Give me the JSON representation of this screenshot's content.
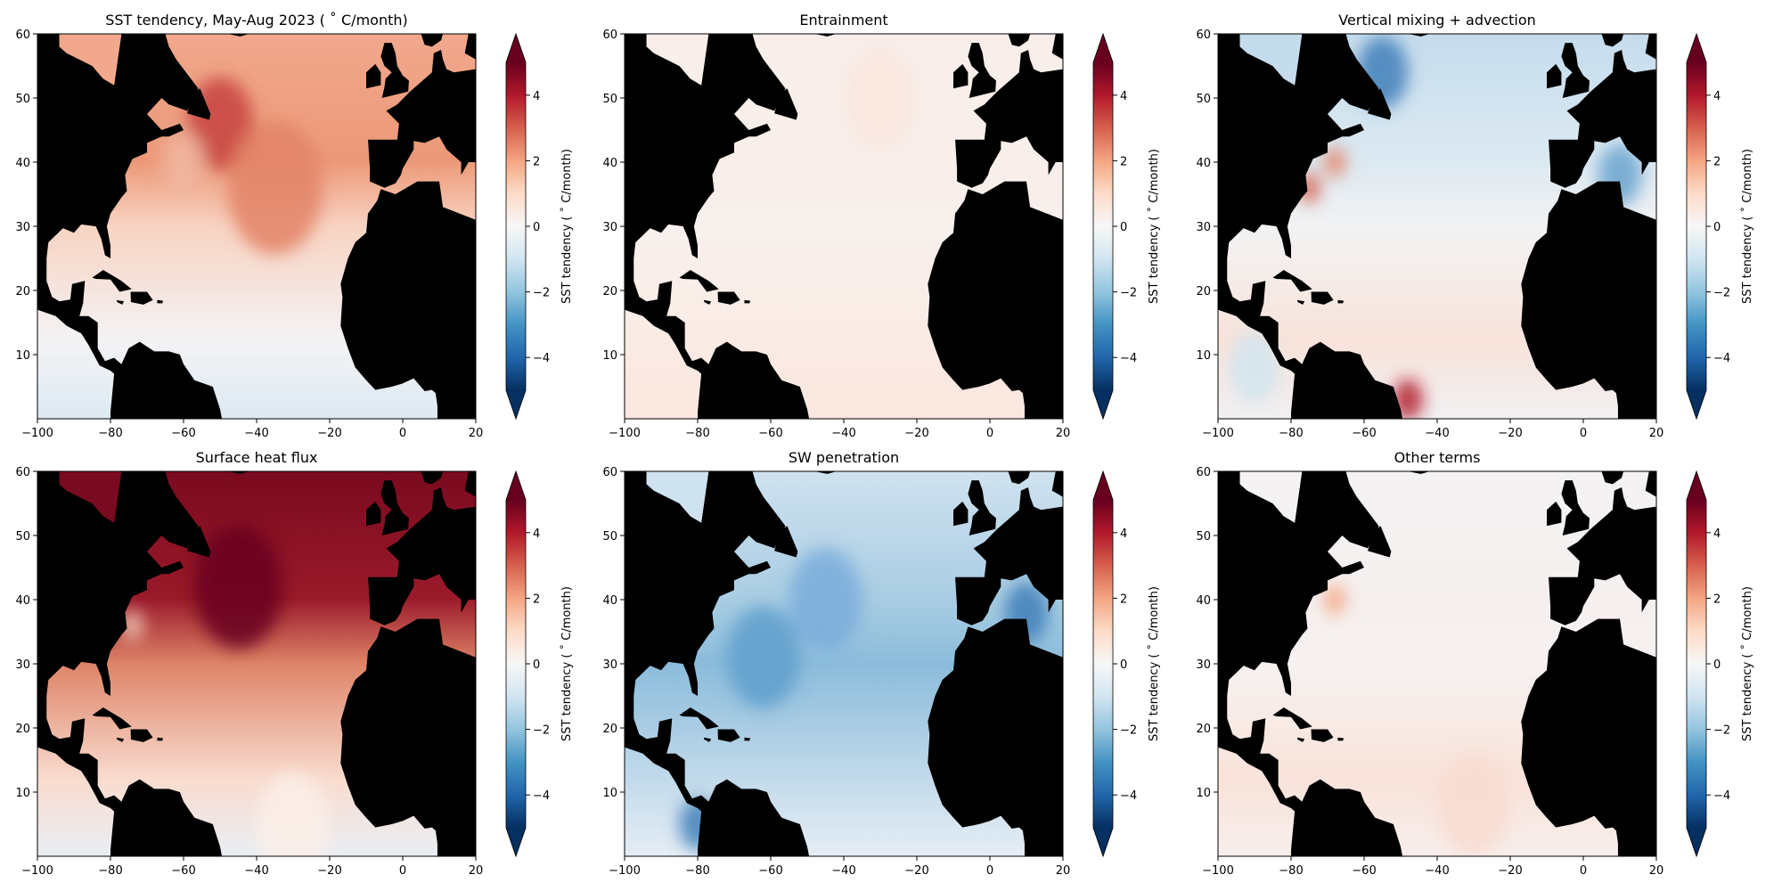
{
  "chart_data": {
    "type": "heatmap",
    "layout": "2x3 grid",
    "colormap": "RdBu_r",
    "colormap_stops": [
      "#053061",
      "#2166ac",
      "#4393c3",
      "#92c5de",
      "#d1e5f0",
      "#f7f7f7",
      "#fddbc7",
      "#f4a582",
      "#d6604d",
      "#b2182b",
      "#67001f"
    ],
    "vmin": -5,
    "vmax": 5,
    "extend": "both",
    "land_color": "#000000",
    "xlim": [
      -100,
      20
    ],
    "ylim": [
      0,
      60
    ],
    "xticks": [
      -100,
      -80,
      -60,
      -40,
      -20,
      0,
      20
    ],
    "xtick_labels": [
      "−100",
      "−80",
      "−60",
      "−40",
      "−20",
      "0",
      "20"
    ],
    "yticks": [
      10,
      20,
      30,
      40,
      50,
      60
    ],
    "ytick_labels": [
      "10",
      "20",
      "30",
      "40",
      "50",
      "60"
    ],
    "colorbar_ticks": [
      -4,
      -2,
      0,
      2,
      4
    ],
    "colorbar_tick_labels": [
      "−4",
      "−2",
      "0",
      "2",
      "4"
    ],
    "colorbar_label": "SST tendency ( ˚ C/month)",
    "panels": [
      {
        "title": "SST tendency, May-Aug 2023 ( ˚ C/month)",
        "field_colors": [
          "#f1a88c",
          "#ec9878",
          "#f8d3c2",
          "#f3f3f5",
          "#dde9f2"
        ]
      },
      {
        "title": "Entrainment",
        "field_colors": [
          "#f8eeea",
          "#f8eeea",
          "#f8f0ed",
          "#faebe4",
          "#fbe7df"
        ]
      },
      {
        "title": "Vertical mixing + advection",
        "field_colors": [
          "#c5dced",
          "#dce9f2",
          "#f2f2f3",
          "#f8e3da",
          "#f1f0f2"
        ]
      },
      {
        "title": "Surface heat flux",
        "field_colors": [
          "#7a0a1f",
          "#9a1a2a",
          "#de8468",
          "#f9dccf",
          "#e8eef4"
        ]
      },
      {
        "title": "SW penetration",
        "field_colors": [
          "#cfe2ef",
          "#a9cde3",
          "#8bbcdb",
          "#c2daeb",
          "#e6eef5"
        ]
      },
      {
        "title": "Other terms",
        "field_colors": [
          "#f4f2f3",
          "#f5f0ef",
          "#f6f1f0",
          "#f9e3da",
          "#f7eeec"
        ]
      }
    ]
  }
}
